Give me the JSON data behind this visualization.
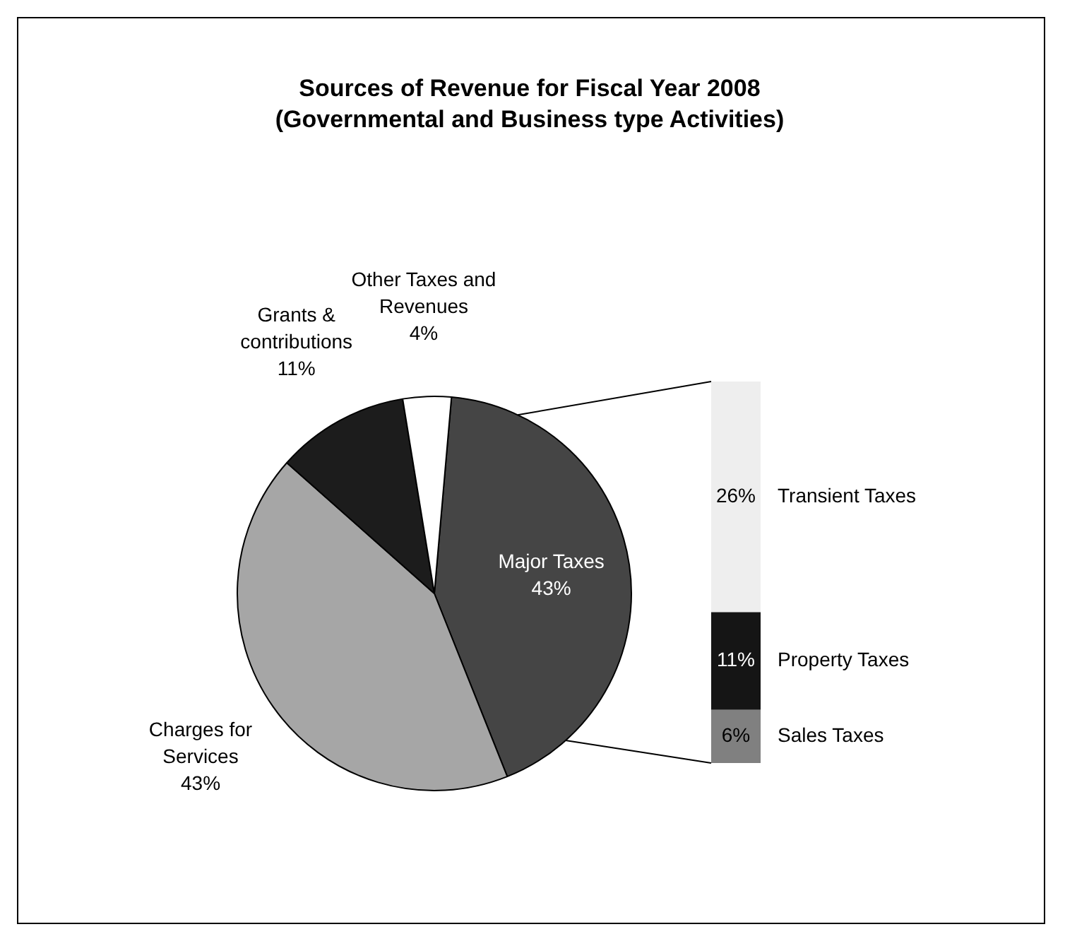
{
  "chart_data": [
    {
      "type": "pie",
      "title": "Sources of Revenue for Fiscal Year 2008",
      "subtitle": "(Governmental and Business type Activities)",
      "categories": [
        "Major Taxes",
        "Charges for Services",
        "Grants & contributions",
        "Other Taxes and Revenues"
      ],
      "values": [
        43,
        43,
        11,
        4
      ],
      "value_labels": [
        "43%",
        "43%",
        "11%",
        "4%"
      ],
      "colors": [
        "#454545",
        "#a6a6a6",
        "#1c1c1c",
        "#ffffff"
      ],
      "legend": false
    },
    {
      "type": "bar",
      "stacked": true,
      "categories": [
        null
      ],
      "legend": false,
      "series": [
        {
          "name": "Sales Taxes",
          "color": "#808080",
          "values": [
            6
          ],
          "value_labels": [
            "6%"
          ]
        },
        {
          "name": "Property Taxes",
          "color": "#151515",
          "values": [
            11
          ],
          "value_labels": [
            "11%"
          ]
        },
        {
          "name": "Transient Taxes",
          "color": "#eeeeee",
          "values": [
            26
          ],
          "value_labels": [
            "26%"
          ]
        }
      ]
    }
  ]
}
